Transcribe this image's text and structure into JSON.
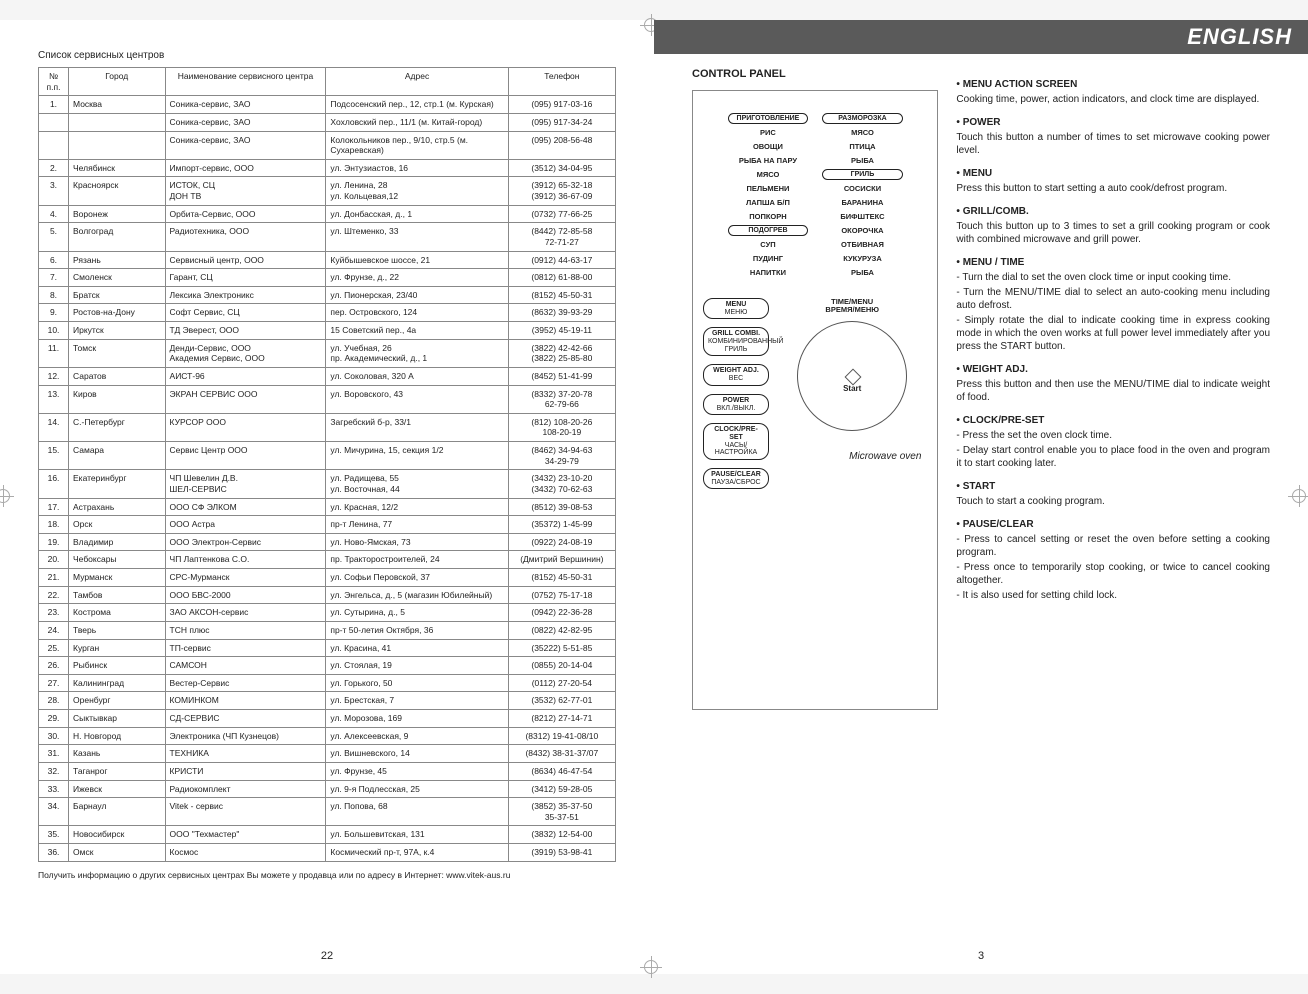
{
  "left": {
    "title": "Список сервисных центров",
    "columns": [
      "№ п.п.",
      "Город",
      "Наименование сервисного центра",
      "Адрес",
      "Телефон"
    ],
    "rows": [
      [
        "1.",
        "Москва",
        "Соника-сервис, ЗАО",
        "Подсосенский пер., 12, стр.1 (м. Курская)",
        "(095) 917-03-16"
      ],
      [
        "",
        "",
        "Соника-сервис, ЗАО",
        "Хохловский пер., 11/1 (м. Китай-город)",
        "(095) 917-34-24"
      ],
      [
        "",
        "",
        "Соника-сервис, ЗАО",
        "Колокольников пер., 9/10, стр.5 (м. Сухаревская)",
        "(095) 208-56-48"
      ],
      [
        "2.",
        "Челябинск",
        "Импорт-сервис, ООО",
        "ул. Энтузиастов, 16",
        "(3512) 34-04-95"
      ],
      [
        "3.",
        "Красноярск",
        "ИСТОК, СЦ\nДОН ТВ",
        "ул. Ленина, 28\nул. Кольцевая,12",
        "(3912) 65-32-18\n(3912) 36-67-09"
      ],
      [
        "4.",
        "Воронеж",
        "Орбита-Сервис, ООО",
        "ул. Донбасская, д., 1",
        "(0732) 77-66-25"
      ],
      [
        "5.",
        "Волгоград",
        "Радиотехника, ООО",
        "ул. Штеменко, 33",
        "(8442) 72-85-58\n72-71-27"
      ],
      [
        "6.",
        "Рязань",
        "Сервисный центр, ООО",
        "Куйбышевское шоссе, 21",
        "(0912) 44-63-17"
      ],
      [
        "7.",
        "Смоленск",
        "Гарант, СЦ",
        "ул. Фрунзе, д., 22",
        "(0812) 61-88-00"
      ],
      [
        "8.",
        "Братск",
        "Лексика Электроникс",
        "ул. Пионерская, 23/40",
        "(8152) 45-50-31"
      ],
      [
        "9.",
        "Ростов-на-Дону",
        "Софт Сервис, СЦ",
        "пер. Островского, 124",
        "(8632) 39-93-29"
      ],
      [
        "10.",
        "Иркутск",
        "ТД Эверест, ООО",
        "15 Советский пер., 4а",
        "(3952) 45-19-11"
      ],
      [
        "11.",
        "Томск",
        "Денди-Сервис, ООО\nАкадемия Сервис, ООО",
        "ул. Учебная, 26\nпр. Академический, д., 1",
        "(3822) 42-42-66\n(3822) 25-85-80"
      ],
      [
        "12.",
        "Саратов",
        "АИСТ-96",
        "ул. Соколовая, 320 А",
        "(8452) 51-41-99"
      ],
      [
        "13.",
        "Киров",
        "ЭКРАН СЕРВИС ООО",
        "ул. Воровского, 43",
        "(8332) 37-20-78\n62-79-66"
      ],
      [
        "14.",
        "С.-Петербург",
        "КУРСОР ООО",
        "Загребский б-р, 33/1",
        "(812) 108-20-26\n108-20-19"
      ],
      [
        "15.",
        "Самара",
        "Сервис Центр ООО",
        "ул. Мичурина, 15, секция 1/2",
        "(8462) 34-94-63\n34-29-79"
      ],
      [
        "16.",
        "Екатеринбург",
        "ЧП Шевелин Д.В.\nШЕЛ-СЕРВИС",
        "ул. Радищева, 55\nул. Восточная, 44",
        "(3432) 23-10-20\n(3432) 70-62-63"
      ],
      [
        "17.",
        "Астрахань",
        "ООО СФ ЭЛКОМ",
        "ул. Красная, 12/2",
        "(8512) 39-08-53"
      ],
      [
        "18.",
        "Орск",
        "ООО Астра",
        "пр-т Ленина, 77",
        "(35372) 1-45-99"
      ],
      [
        "19.",
        "Владимир",
        "ООО Электрон-Сервис",
        "ул. Ново-Ямская, 73",
        "(0922) 24-08-19"
      ],
      [
        "20.",
        "Чебоксары",
        "ЧП Лаптенкова С.О.",
        "пр. Тракторостроителей, 24",
        "(Дмитрий Вершинин)"
      ],
      [
        "21.",
        "Мурманск",
        "СРС-Мурманск",
        "ул. Софьи Перовской, 37",
        "(8152) 45-50-31"
      ],
      [
        "22.",
        "Тамбов",
        "ООО БВС-2000",
        "ул. Энгельса, д., 5 (магазин Юбилейный)",
        "(0752) 75-17-18"
      ],
      [
        "23.",
        "Кострома",
        "ЗАО АКСОН-сервис",
        "ул. Сутырина, д., 5",
        "(0942) 22-36-28"
      ],
      [
        "24.",
        "Тверь",
        "ТСН плюс",
        "пр-т 50-летия Октября, 36",
        "(0822) 42-82-95"
      ],
      [
        "25.",
        "Курган",
        "ТП-сервис",
        "ул. Красина, 41",
        "(35222) 5-51-85"
      ],
      [
        "26.",
        "Рыбинск",
        "САМСОН",
        "ул. Стоялая, 19",
        "(0855) 20-14-04"
      ],
      [
        "27.",
        "Калининград",
        "Вестер-Сервис",
        "ул. Горького, 50",
        "(0112) 27-20-54"
      ],
      [
        "28.",
        "Оренбург",
        "КОМИНКОМ",
        "ул. Брестская, 7",
        "(3532) 62-77-01"
      ],
      [
        "29.",
        "Сыктывкар",
        "СД-СЕРВИС",
        "ул. Морозова, 169",
        "(8212) 27-14-71"
      ],
      [
        "30.",
        "Н. Новгород",
        "Электроника (ЧП Кузнецов)",
        "ул. Алексеевская, 9",
        "(8312) 19-41-08/10"
      ],
      [
        "31.",
        "Казань",
        "ТЕХНИКА",
        "ул. Вишневского, 14",
        "(8432) 38-31-37/07"
      ],
      [
        "32.",
        "Таганрог",
        "КРИСТИ",
        "ул. Фрунзе, 45",
        "(8634) 46-47-54"
      ],
      [
        "33.",
        "Ижевск",
        "Радиокомплект",
        "ул. 9-я Подлесская, 25",
        "(3412) 59-28-05"
      ],
      [
        "34.",
        "Барнаул",
        "Vitek - сервис",
        "ул. Попова, 68",
        "(3852) 35-37-50\n35-37-51"
      ],
      [
        "35.",
        "Новосибирск",
        "ООО \"Техмастер\"",
        "ул. Большевитская, 131",
        "(3832) 12-54-00"
      ],
      [
        "36.",
        "Омск",
        "Космос",
        "Космический пр-т, 97А, к.4",
        "(3919) 53-98-41"
      ]
    ],
    "footnote": "Получить информацию о других сервисных центрах Вы можете у продавца или по адресу в Интернет: www.vitek-aus.ru",
    "page_num": "22"
  },
  "right": {
    "language": "ENGLISH",
    "section_title": "CONTROL PANEL",
    "page_num": "3",
    "menu_top": [
      {
        "l": "ПРИГОТОВЛЕНИЕ",
        "lo": true,
        "r": "РАЗМОРОЗКА",
        "ro": true
      },
      {
        "l": "РИС",
        "r": "МЯСО"
      },
      {
        "l": "ОВОЩИ",
        "r": "ПТИЦА"
      },
      {
        "l": "РЫБА НА ПАРУ",
        "r": "РЫБА"
      },
      {
        "l": "МЯСО",
        "r": "ГРИЛЬ",
        "ro": true
      },
      {
        "l": "ПЕЛЬМЕНИ",
        "r": "СОСИСКИ"
      },
      {
        "l": "ЛАПША Б/П",
        "r": "БАРАНИНА"
      },
      {
        "l": "ПОПКОРН",
        "r": "БИФШТЕКС"
      },
      {
        "l": "ПОДОГРЕВ",
        "lo": true,
        "r": "ОКОРОЧКА"
      },
      {
        "l": "СУП",
        "r": "ОТБИВНАЯ"
      },
      {
        "l": "ПУДИНГ",
        "r": "КУКУРУЗА"
      },
      {
        "l": "НАПИТКИ",
        "r": "РЫБА"
      }
    ],
    "buttons": [
      "MENU\nМЕНЮ",
      "GRILL COMBI.\nКОМБИНИРОВАННЫЙ\nГРИЛЬ",
      "WEIGHT ADJ.\nВЕС",
      "POWER\nВКЛ./ВЫКЛ.",
      "CLOCK/PRE-SET\nЧАСЫ/НАСТРОЙКА",
      "PAUSE/CLEAR\nПАУЗА/СБРОС"
    ],
    "time_label": "TIME/MENU\nВРЕМЯ/МЕНЮ",
    "dial_start": "Start",
    "mw_label": "Microwave oven",
    "descriptions": [
      {
        "h": "MENU ACTION SCREEN",
        "p": [
          "Cooking time, power, action indicators, and clock time are displayed."
        ]
      },
      {
        "h": "POWER",
        "p": [
          "Touch this button a number of times to set microwave cooking power level."
        ]
      },
      {
        "h": "MENU",
        "p": [
          "Press this button to start setting a auto cook/defrost program."
        ]
      },
      {
        "h": "GRILL/COMB.",
        "p": [
          "Touch this button up to 3 times to set a grill cooking program or cook with combined microwave and grill power."
        ]
      },
      {
        "h": "MENU / TIME",
        "p": [
          "- Turn the dial to set the oven clock time or input cooking time.",
          "- Turn the MENU/TIME dial to select an auto-cooking menu including auto defrost.",
          "- Simply rotate the dial to indicate cooking time in express cooking mode in which the oven works at full power level immediately after you press the START button."
        ]
      },
      {
        "h": "WEIGHT ADJ.",
        "p": [
          "Press this button and then use the MENU/TIME dial to indicate weight of food."
        ]
      },
      {
        "h": "CLOCK/PRE-SET",
        "p": [
          "- Press the set the oven clock time.",
          "- Delay start control enable you to place food in the oven and program it to start cooking later."
        ]
      },
      {
        "h": "START",
        "p": [
          "Touch to start a cooking program."
        ]
      },
      {
        "h": "PAUSE/CLEAR",
        "p": [
          "- Press to cancel setting or reset the oven before setting a cooking program.",
          "- Press once to temporarily stop cooking, or twice to cancel cooking altogether.",
          "- It is also used for setting child lock."
        ]
      }
    ]
  }
}
